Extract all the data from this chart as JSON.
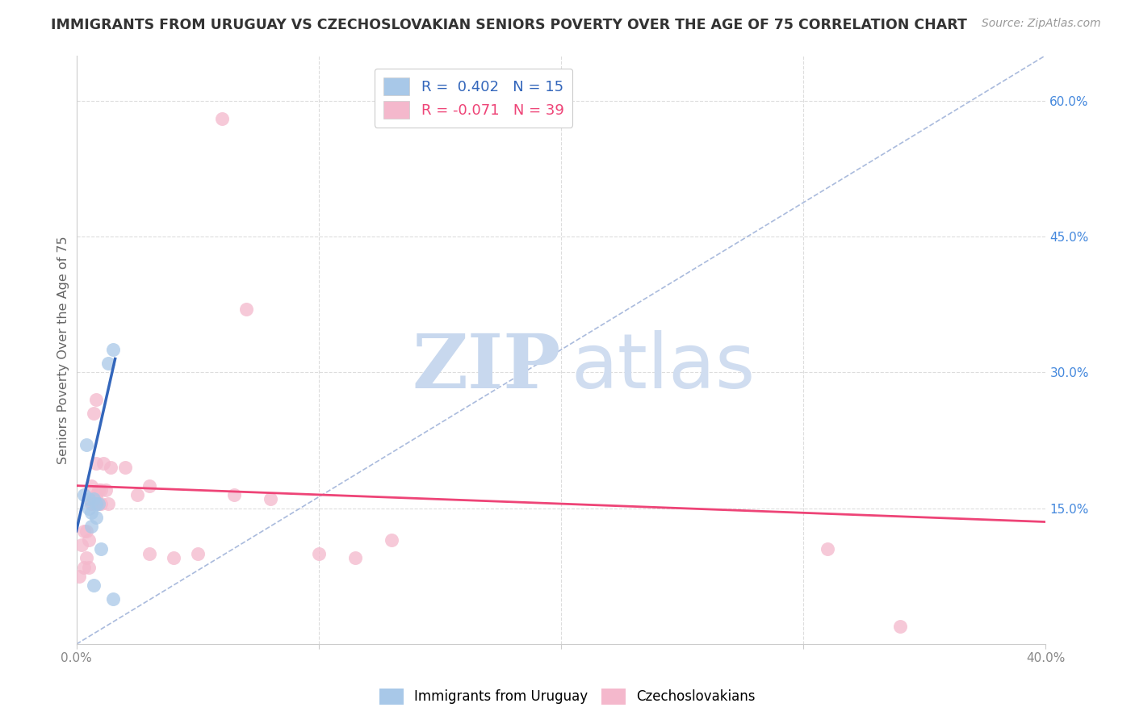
{
  "title": "IMMIGRANTS FROM URUGUAY VS CZECHOSLOVAKIAN SENIORS POVERTY OVER THE AGE OF 75 CORRELATION CHART",
  "source": "Source: ZipAtlas.com",
  "ylabel": "Seniors Poverty Over the Age of 75",
  "xlim": [
    0.0,
    0.4
  ],
  "ylim": [
    0.0,
    0.65
  ],
  "xticks": [
    0.0,
    0.1,
    0.2,
    0.3,
    0.4
  ],
  "xticklabels": [
    "0.0%",
    "",
    "",
    "",
    "40.0%"
  ],
  "yticks_right": [
    0.15,
    0.3,
    0.45,
    0.6
  ],
  "yticklabels_right": [
    "15.0%",
    "30.0%",
    "45.0%",
    "60.0%"
  ],
  "legend_blue_r": "0.402",
  "legend_blue_n": "15",
  "legend_pink_r": "-0.071",
  "legend_pink_n": "39",
  "blue_color": "#a8c8e8",
  "pink_color": "#f4b8cc",
  "blue_line_color": "#3366bb",
  "pink_line_color": "#ee4477",
  "dashed_line_color": "#aabbdd",
  "watermark_zip": "ZIP",
  "watermark_atlas": "atlas",
  "blue_scatter_x": [
    0.003,
    0.004,
    0.005,
    0.005,
    0.006,
    0.006,
    0.007,
    0.007,
    0.008,
    0.008,
    0.009,
    0.01,
    0.013,
    0.015,
    0.015
  ],
  "blue_scatter_y": [
    0.165,
    0.22,
    0.16,
    0.15,
    0.145,
    0.13,
    0.16,
    0.065,
    0.155,
    0.14,
    0.155,
    0.105,
    0.31,
    0.325,
    0.05
  ],
  "pink_scatter_x": [
    0.001,
    0.002,
    0.003,
    0.003,
    0.004,
    0.004,
    0.005,
    0.005,
    0.006,
    0.006,
    0.006,
    0.007,
    0.007,
    0.008,
    0.008,
    0.008,
    0.009,
    0.009,
    0.01,
    0.01,
    0.011,
    0.012,
    0.013,
    0.014,
    0.02,
    0.025,
    0.03,
    0.03,
    0.04,
    0.05,
    0.06,
    0.065,
    0.07,
    0.08,
    0.1,
    0.115,
    0.13,
    0.31,
    0.34
  ],
  "pink_scatter_y": [
    0.075,
    0.11,
    0.125,
    0.085,
    0.125,
    0.095,
    0.115,
    0.085,
    0.155,
    0.175,
    0.155,
    0.255,
    0.16,
    0.27,
    0.2,
    0.165,
    0.17,
    0.155,
    0.17,
    0.155,
    0.2,
    0.17,
    0.155,
    0.195,
    0.195,
    0.165,
    0.175,
    0.1,
    0.095,
    0.1,
    0.58,
    0.165,
    0.37,
    0.16,
    0.1,
    0.095,
    0.115,
    0.105,
    0.02
  ],
  "blue_trend_x": [
    0.0,
    0.016
  ],
  "blue_trend_y": [
    0.125,
    0.315
  ],
  "pink_trend_x": [
    0.0,
    0.4
  ],
  "pink_trend_y": [
    0.175,
    0.135
  ],
  "dashed_trend_x": [
    0.0,
    0.4
  ],
  "dashed_trend_y": [
    0.0,
    0.65
  ],
  "grid_color": "#dddddd",
  "spine_color": "#cccccc",
  "tick_color": "#888888",
  "right_axis_color": "#4488dd",
  "title_color": "#333333",
  "source_color": "#999999",
  "ylabel_color": "#666666"
}
